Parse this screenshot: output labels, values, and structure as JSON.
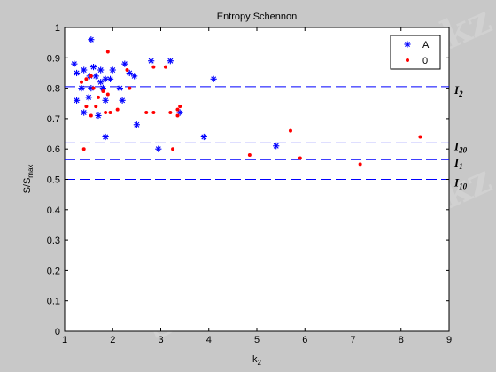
{
  "chart_data": {
    "type": "scatter",
    "title": "Entropy Schennon",
    "xlabel": "k",
    "xlabel_sub": "2",
    "ylabel": "S/S",
    "ylabel_sub": "max",
    "xlim": [
      1,
      9
    ],
    "ylim": [
      0,
      1
    ],
    "xticks": [
      "1",
      "2",
      "3",
      "4",
      "5",
      "6",
      "7",
      "8",
      "9"
    ],
    "yticks": [
      "0",
      "0.1",
      "0.2",
      "0.3",
      "0.4",
      "0.5",
      "0.6",
      "0.7",
      "0.8",
      "0.9",
      "1"
    ],
    "grid": false,
    "legend_position": "top-right",
    "series": [
      {
        "name": "A",
        "marker": "star",
        "color": "#0000ff",
        "points": [
          [
            1.55,
            0.96
          ],
          [
            1.2,
            0.88
          ],
          [
            1.6,
            0.87
          ],
          [
            1.25,
            0.85
          ],
          [
            1.4,
            0.86
          ],
          [
            1.52,
            0.84
          ],
          [
            1.65,
            0.84
          ],
          [
            1.75,
            0.86
          ],
          [
            1.75,
            0.82
          ],
          [
            1.85,
            0.83
          ],
          [
            1.95,
            0.83
          ],
          [
            2.0,
            0.86
          ],
          [
            2.25,
            0.88
          ],
          [
            2.35,
            0.85
          ],
          [
            2.45,
            0.84
          ],
          [
            1.35,
            0.8
          ],
          [
            1.55,
            0.8
          ],
          [
            1.8,
            0.8
          ],
          [
            2.15,
            0.8
          ],
          [
            1.25,
            0.76
          ],
          [
            1.5,
            0.77
          ],
          [
            1.85,
            0.76
          ],
          [
            2.2,
            0.76
          ],
          [
            1.4,
            0.72
          ],
          [
            1.7,
            0.71
          ],
          [
            1.85,
            0.64
          ],
          [
            2.5,
            0.68
          ],
          [
            2.8,
            0.89
          ],
          [
            3.2,
            0.89
          ],
          [
            2.95,
            0.6
          ],
          [
            3.4,
            0.72
          ],
          [
            3.9,
            0.64
          ],
          [
            4.1,
            0.83
          ],
          [
            5.4,
            0.61
          ]
        ]
      },
      {
        "name": "0",
        "marker": "dot",
        "color": "#ff0000",
        "points": [
          [
            1.35,
            0.82
          ],
          [
            1.45,
            0.83
          ],
          [
            1.55,
            0.84
          ],
          [
            1.6,
            0.8
          ],
          [
            1.7,
            0.77
          ],
          [
            1.8,
            0.79
          ],
          [
            1.9,
            0.78
          ],
          [
            1.95,
            0.72
          ],
          [
            1.85,
            0.72
          ],
          [
            1.65,
            0.74
          ],
          [
            1.45,
            0.74
          ],
          [
            1.55,
            0.71
          ],
          [
            1.9,
            0.92
          ],
          [
            2.1,
            0.73
          ],
          [
            2.3,
            0.86
          ],
          [
            2.35,
            0.8
          ],
          [
            1.4,
            0.6
          ],
          [
            2.7,
            0.72
          ],
          [
            2.85,
            0.72
          ],
          [
            2.85,
            0.87
          ],
          [
            3.1,
            0.87
          ],
          [
            3.2,
            0.72
          ],
          [
            3.25,
            0.6
          ],
          [
            3.35,
            0.73
          ],
          [
            3.4,
            0.74
          ],
          [
            3.35,
            0.71
          ],
          [
            4.85,
            0.58
          ],
          [
            5.7,
            0.66
          ],
          [
            5.9,
            0.57
          ],
          [
            7.15,
            0.55
          ],
          [
            8.4,
            0.64
          ]
        ]
      }
    ],
    "reference_lines": [
      {
        "y": 0.805,
        "label": "I",
        "sub": "2"
      },
      {
        "y": 0.62,
        "label": "I",
        "sub": "20"
      },
      {
        "y": 0.565,
        "label": "I",
        "sub": "1"
      },
      {
        "y": 0.5,
        "label": "I",
        "sub": "10"
      }
    ]
  },
  "watermark": "Stud.kz - Stud.kz"
}
